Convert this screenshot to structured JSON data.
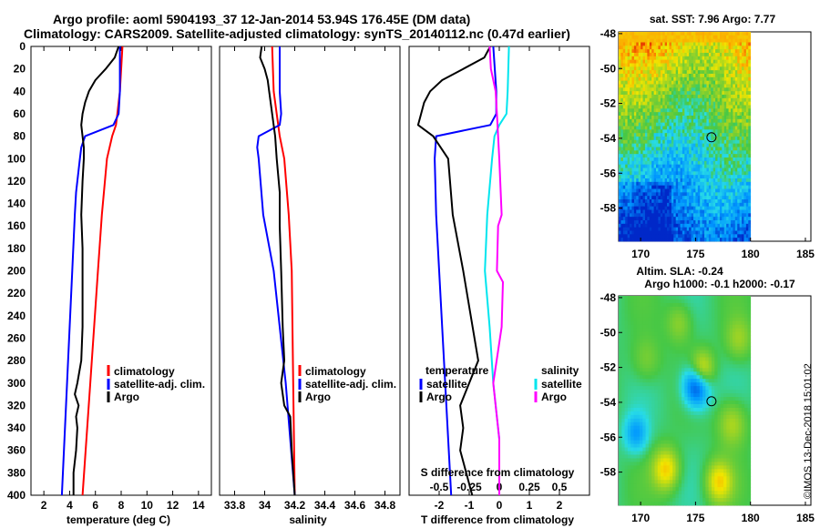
{
  "header": {
    "title_line1": "Argo profile: aoml 5904193_37 12-Jan-2014 53.94S 176.45E (DM data)",
    "title_line2": "Climatology: CARS2009. Satellite-adjusted climatology: synTS_20140112.nc (0.47d earlier)"
  },
  "depth_ticks": [
    "0",
    "20",
    "40",
    "60",
    "80",
    "100",
    "120",
    "140",
    "160",
    "180",
    "200",
    "220",
    "240",
    "260",
    "280",
    "300",
    "320",
    "340",
    "360",
    "380",
    "400"
  ],
  "colors": {
    "climatology": "#ff0000",
    "satellite": "#0000ff",
    "argo": "#000000",
    "s_satellite": "#00e5ee",
    "s_argo": "#ff00ff"
  },
  "chart_data": [
    {
      "type": "line",
      "id": "temperature",
      "xlabel": "temperature (deg C)",
      "ylabel": "depth",
      "xlim": [
        1,
        15
      ],
      "ylim": [
        400,
        0
      ],
      "xticks": [
        2,
        4,
        6,
        8,
        10,
        12,
        14
      ],
      "xtick_labels": [
        "2",
        "4",
        "6",
        "8",
        "10",
        "12",
        "14"
      ],
      "legend": [
        "climatology",
        "satellite-adj. clim.",
        "Argo"
      ],
      "series": [
        {
          "name": "climatology",
          "depth": [
            0,
            20,
            40,
            60,
            70,
            80,
            100,
            150,
            200,
            300,
            400
          ],
          "values": [
            8.1,
            8.0,
            7.9,
            7.7,
            7.6,
            7.3,
            6.9,
            6.5,
            6.2,
            5.6,
            5.0
          ]
        },
        {
          "name": "satellite-adj. clim.",
          "depth": [
            0,
            20,
            40,
            60,
            70,
            80,
            90,
            100,
            130,
            150,
            200,
            300,
            400
          ],
          "values": [
            7.9,
            7.9,
            7.9,
            7.8,
            7.4,
            5.2,
            4.9,
            4.8,
            4.5,
            4.4,
            4.2,
            3.8,
            3.4
          ]
        },
        {
          "name": "Argo",
          "depth": [
            0,
            10,
            20,
            30,
            40,
            50,
            60,
            70,
            80,
            90,
            100,
            120,
            150,
            180,
            200,
            250,
            280,
            300,
            310,
            320,
            330,
            340,
            360,
            380,
            400
          ],
          "values": [
            7.8,
            7.5,
            6.8,
            6.0,
            5.5,
            5.2,
            5.0,
            4.9,
            5.0,
            5.1,
            5.1,
            5.0,
            4.9,
            5.0,
            5.0,
            5.0,
            4.9,
            4.6,
            4.4,
            4.7,
            4.5,
            4.6,
            4.5,
            4.3,
            4.3
          ]
        }
      ]
    },
    {
      "type": "line",
      "id": "salinity",
      "xlabel": "salinity",
      "ylabel": "depth",
      "xlim": [
        33.7,
        34.9
      ],
      "ylim": [
        400,
        0
      ],
      "xticks": [
        33.8,
        34.0,
        34.2,
        34.4,
        34.6,
        34.8
      ],
      "xtick_labels": [
        "33.8",
        "34",
        "34.2",
        "34.4",
        "34.6",
        "34.8"
      ],
      "legend": [
        "climatology",
        "satellite-adj. clim.",
        "Argo"
      ],
      "series": [
        {
          "name": "climatology",
          "depth": [
            0,
            40,
            60,
            80,
            100,
            150,
            200,
            300,
            400
          ],
          "values": [
            34.05,
            34.06,
            34.08,
            34.1,
            34.13,
            34.16,
            34.18,
            34.19,
            34.2
          ]
        },
        {
          "name": "satellite-adj. clim.",
          "depth": [
            0,
            40,
            60,
            70,
            80,
            90,
            100,
            150,
            200,
            300,
            400
          ],
          "values": [
            34.1,
            34.1,
            34.11,
            34.1,
            33.96,
            33.95,
            33.96,
            33.99,
            34.06,
            34.14,
            34.2
          ]
        },
        {
          "name": "Argo",
          "depth": [
            0,
            10,
            20,
            30,
            40,
            60,
            80,
            100,
            130,
            160,
            200,
            250,
            280,
            300,
            320,
            330,
            360,
            400
          ],
          "values": [
            33.98,
            33.97,
            34.0,
            34.02,
            34.03,
            34.05,
            34.07,
            34.08,
            34.1,
            34.1,
            34.11,
            34.12,
            34.13,
            34.11,
            34.13,
            34.17,
            34.18,
            34.2
          ]
        }
      ]
    },
    {
      "type": "line",
      "id": "differences",
      "xlabel": "T difference from climatology",
      "ylabel": "depth",
      "xlim": [
        -3,
        3
      ],
      "ylim": [
        400,
        0
      ],
      "xticks": [
        -2,
        -1,
        0,
        1,
        2
      ],
      "xtick_labels": [
        "-2",
        "-1",
        "0",
        "1",
        "2"
      ],
      "secondary_xlabel": "S difference from climatology",
      "secondary_xlim": [
        -0.75,
        0.75
      ],
      "secondary_xticks": [
        -0.5,
        -0.25,
        0,
        0.25,
        0.5
      ],
      "secondary_xtick_labels": [
        "-0.5",
        "-0.25",
        "0",
        "0.25",
        "0.5"
      ],
      "legend_temperature": {
        "title": "temperature",
        "entries": [
          "satellite",
          "Argo"
        ]
      },
      "legend_salinity": {
        "title": "salinity",
        "entries": [
          "satellite",
          "Argo"
        ]
      },
      "series": [
        {
          "name": "T satellite",
          "axis": "T",
          "depth": [
            0,
            40,
            60,
            70,
            80,
            100,
            150,
            200,
            300,
            400
          ],
          "values": [
            -0.2,
            -0.1,
            -0.1,
            -0.3,
            -2.1,
            -2.15,
            -2.1,
            -2.0,
            -1.8,
            -1.6
          ]
        },
        {
          "name": "T Argo",
          "axis": "T",
          "depth": [
            0,
            10,
            20,
            30,
            40,
            50,
            60,
            70,
            80,
            100,
            150,
            200,
            280,
            300,
            320,
            340,
            360,
            400
          ],
          "values": [
            -0.3,
            -0.5,
            -1.2,
            -1.9,
            -2.3,
            -2.5,
            -2.6,
            -2.7,
            -2.2,
            -1.7,
            -1.55,
            -1.2,
            -0.7,
            -1.0,
            -1.3,
            -1.2,
            -1.3,
            -0.9
          ]
        },
        {
          "name": "S satellite",
          "axis": "S",
          "depth": [
            0,
            40,
            60,
            70,
            80,
            100,
            150,
            200,
            250,
            300,
            350,
            400
          ],
          "values": [
            0.08,
            0.07,
            0.06,
            0.0,
            -0.04,
            -0.06,
            -0.1,
            -0.12,
            -0.08,
            -0.05,
            0.0,
            0.0
          ]
        },
        {
          "name": "S Argo",
          "axis": "S",
          "depth": [
            0,
            20,
            40,
            60,
            80,
            100,
            150,
            160,
            200,
            210,
            250,
            300,
            320,
            350,
            400
          ],
          "values": [
            -0.08,
            -0.07,
            -0.03,
            -0.02,
            -0.01,
            0.0,
            0.02,
            -0.01,
            -0.02,
            0.03,
            0.02,
            -0.05,
            -0.03,
            0.0,
            0.0
          ]
        }
      ]
    }
  ],
  "sst_map": {
    "title": "sat. SST: 7.96 Argo: 7.77",
    "lat_ticks": [
      "-48",
      "-50",
      "-52",
      "-54",
      "-56",
      "-58"
    ],
    "lon_ticks": [
      "170",
      "175",
      "180",
      "185"
    ],
    "argo_lon": 176.45,
    "argo_lat": -53.94
  },
  "sla_map": {
    "title_line1": "Altim. SLA: -0.24",
    "title_line2": "Argo h1000: -0.1 h2000: -0.17",
    "lat_ticks": [
      "-48",
      "-50",
      "-52",
      "-54",
      "-56",
      "-58"
    ],
    "lon_ticks": [
      "170",
      "175",
      "180",
      "185"
    ],
    "argo_lon": 176.45,
    "argo_lat": -53.94
  },
  "credit": "©IMOS 13-Dec-2018 15:01:02"
}
